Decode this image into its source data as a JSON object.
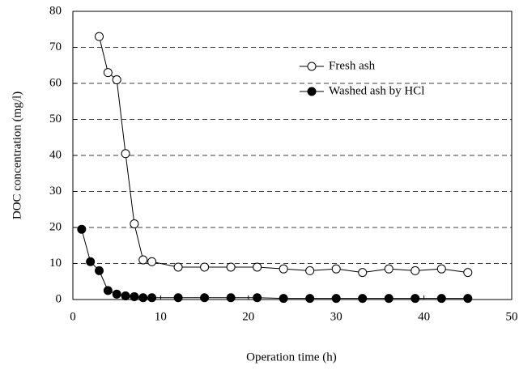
{
  "chart_data": {
    "type": "line",
    "x_label": "Operation time (h)",
    "y_label": "DOC concentration (mg/l)",
    "xlim": [
      0,
      50
    ],
    "xticks": [
      0,
      10,
      20,
      30,
      40,
      50
    ],
    "ylim": [
      0,
      80
    ],
    "yticks": [
      0,
      10,
      20,
      30,
      40,
      50,
      60,
      70,
      80
    ],
    "grid": true,
    "legend": "upper right",
    "series": [
      {
        "name": "Fresh ash",
        "color": "#000000",
        "marker": "open-circle",
        "x": [
          3,
          4,
          5,
          6,
          7,
          8,
          9,
          12,
          15,
          18,
          21,
          24,
          27,
          30,
          33,
          36,
          39,
          42,
          45
        ],
        "values": [
          73,
          63,
          61,
          40.5,
          21,
          11,
          10.5,
          9,
          9,
          9,
          9,
          8.5,
          8,
          8.5,
          7.5,
          8.5,
          8,
          8.5,
          7.5
        ]
      },
      {
        "name": "Washed ash by HCl",
        "color": "#000000",
        "marker": "filled-circle",
        "x": [
          1,
          2,
          3,
          4,
          5,
          6,
          7,
          8,
          9,
          12,
          15,
          18,
          21,
          24,
          27,
          30,
          33,
          36,
          39,
          42,
          45
        ],
        "values": [
          19.5,
          10.5,
          8,
          2.5,
          1.5,
          1,
          0.8,
          0.5,
          0.5,
          0.5,
          0.5,
          0.5,
          0.5,
          0.3,
          0.3,
          0.3,
          0.3,
          0.3,
          0.3,
          0.3,
          0.3
        ]
      }
    ]
  }
}
